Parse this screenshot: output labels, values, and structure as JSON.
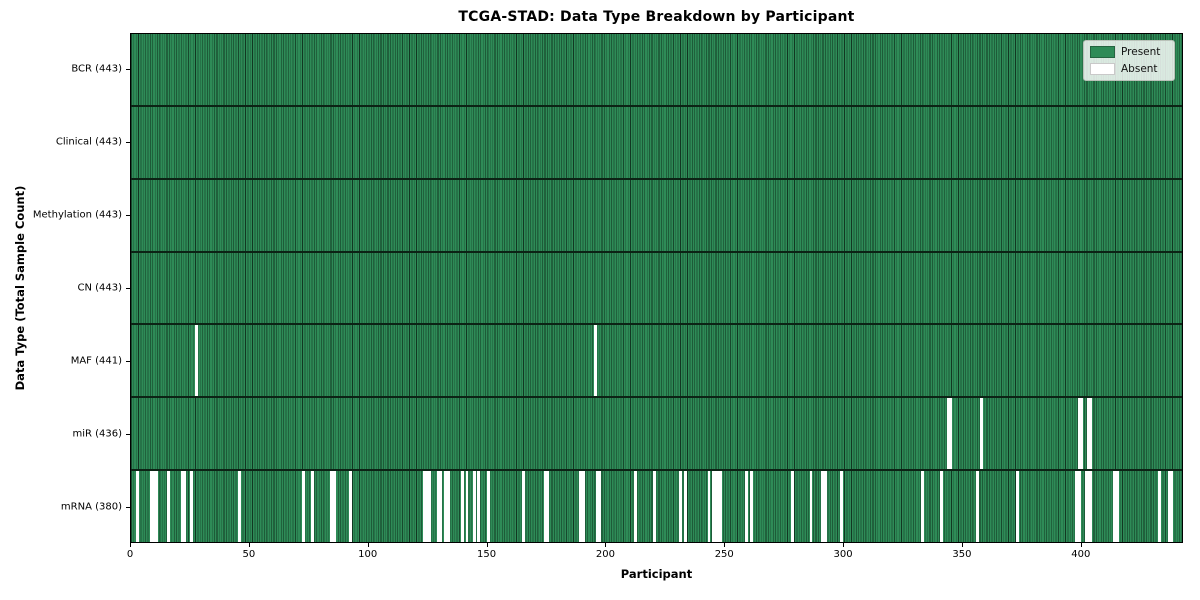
{
  "chart_data": {
    "type": "heatmap",
    "title": "TCGA-STAD: Data Type Breakdown by Participant",
    "xlabel": "Participant",
    "ylabel": "Data Type (Total Sample Count)",
    "x_ticks": [
      0,
      50,
      100,
      150,
      200,
      250,
      300,
      350,
      400
    ],
    "x_range": [
      0,
      443
    ],
    "n_participants": 443,
    "grid": false,
    "colors": {
      "present": "#2e8b57",
      "absent": "#ffffff",
      "cell_edge": "#1d5b38",
      "row_separator": "#0c2315",
      "plot_border": "#000000"
    },
    "legend": {
      "position": "upper right",
      "entries": [
        {
          "label": "Present",
          "color": "#2e8b57"
        },
        {
          "label": "Absent",
          "color": "#ffffff"
        }
      ]
    },
    "rows": [
      {
        "label": "BCR (443)",
        "present_count": 443,
        "absent_participants": []
      },
      {
        "label": "Clinical (443)",
        "present_count": 443,
        "absent_participants": []
      },
      {
        "label": "Methylation (443)",
        "present_count": 443,
        "absent_participants": []
      },
      {
        "label": "CN (443)",
        "present_count": 443,
        "absent_participants": []
      },
      {
        "label": "MAF (441)",
        "present_count": 441,
        "absent_participants": [
          27,
          195
        ]
      },
      {
        "label": "miR (436)",
        "present_count": 436,
        "absent_participants": [
          344,
          345,
          358,
          399,
          400,
          403,
          404
        ]
      },
      {
        "label": "mRNA (380)",
        "present_count": 380,
        "absent_participants": [
          2,
          8,
          9,
          10,
          15,
          21,
          22,
          25,
          45,
          72,
          76,
          84,
          85,
          92,
          123,
          124,
          125,
          129,
          130,
          132,
          133,
          139,
          141,
          144,
          146,
          150,
          165,
          174,
          175,
          189,
          190,
          196,
          197,
          212,
          220,
          231,
          233,
          243,
          245,
          246,
          247,
          248,
          259,
          261,
          278,
          286,
          291,
          292,
          299,
          333,
          341,
          356,
          373,
          398,
          399,
          402,
          403,
          404,
          414,
          415,
          433,
          437,
          438
        ]
      }
    ]
  }
}
